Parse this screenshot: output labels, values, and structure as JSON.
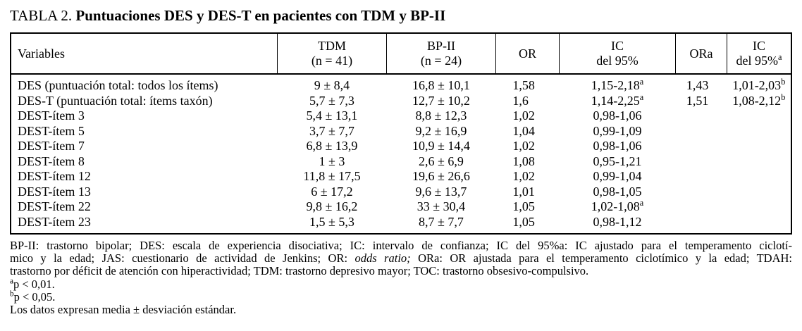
{
  "title": {
    "label": "TABLA 2.",
    "text": "Puntuaciones DES y DES-T en pacientes con TDM y BP-II"
  },
  "table": {
    "columns": [
      {
        "id": "variables",
        "header_lines": [
          "Variables"
        ]
      },
      {
        "id": "tdm",
        "header_lines": [
          "TDM",
          "(n = 41)"
        ]
      },
      {
        "id": "bpii",
        "header_lines": [
          "BP-II",
          "(n = 24)"
        ]
      },
      {
        "id": "or",
        "header_lines": [
          "OR"
        ]
      },
      {
        "id": "ic95",
        "header_lines": [
          "IC",
          "del 95%"
        ]
      },
      {
        "id": "ora",
        "header_lines": [
          "ORa"
        ]
      },
      {
        "id": "ic95a",
        "header_lines": [
          "IC",
          "del 95%"
        ],
        "header_sup": "a"
      }
    ],
    "rows": [
      {
        "variable": "DES (puntuación total: todos los ítems)",
        "tdm": "9 ± 8,4",
        "bpii": "16,8 ± 10,1",
        "or": "1,58",
        "ic95": {
          "text": "1,15-2,18",
          "sup": "a"
        },
        "ora": "1,43",
        "ic95a": {
          "text": "1,01-2,03",
          "sup": "b"
        }
      },
      {
        "variable": "DES-T (puntuación total: ítems taxón)",
        "tdm": "5,7 ± 7,3",
        "bpii": "12,7 ± 10,2",
        "or": "1,6",
        "ic95": {
          "text": "1,14-2,25",
          "sup": "a"
        },
        "ora": "1,51",
        "ic95a": {
          "text": "1,08-2,12",
          "sup": "b"
        }
      },
      {
        "variable": "DEST-ítem 3",
        "tdm": "5,4 ± 13,1",
        "bpii": "8,8 ± 12,3",
        "or": "1,02",
        "ic95": {
          "text": "0,98-1,06"
        },
        "ora": "",
        "ic95a": null
      },
      {
        "variable": "DEST-ítem 5",
        "tdm": "3,7 ± 7,7",
        "bpii": "9,2 ± 16,9",
        "or": "1,04",
        "ic95": {
          "text": "0,99-1,09"
        },
        "ora": "",
        "ic95a": null
      },
      {
        "variable": "DEST-ítem 7",
        "tdm": "6,8 ± 13,9",
        "bpii": "10,9 ± 14,4",
        "or": "1,02",
        "ic95": {
          "text": "0,98-1,06"
        },
        "ora": "",
        "ic95a": null
      },
      {
        "variable": "DEST-ítem 8",
        "tdm": "1 ± 3",
        "bpii": "2,6 ± 6,9",
        "or": "1,08",
        "ic95": {
          "text": "0,95-1,21"
        },
        "ora": "",
        "ic95a": null
      },
      {
        "variable": "DEST-ítem 12",
        "tdm": "11,8 ± 17,5",
        "bpii": "19,6 ± 26,6",
        "or": "1,02",
        "ic95": {
          "text": "0,99-1,04"
        },
        "ora": "",
        "ic95a": null
      },
      {
        "variable": "DEST-ítem 13",
        "tdm": "6 ± 17,2",
        "bpii": "9,6 ± 13,7",
        "or": "1,01",
        "ic95": {
          "text": "0,98-1,05"
        },
        "ora": "",
        "ic95a": null
      },
      {
        "variable": "DEST-ítem 22",
        "tdm": "9,8 ± 16,2",
        "bpii": "33 ± 30,4",
        "or": "1,05",
        "ic95": {
          "text": "1,02-1,08",
          "sup": "a"
        },
        "ora": "",
        "ic95a": null
      },
      {
        "variable": "DEST-ítem 23",
        "tdm": "1,5 ± 5,3",
        "bpii": "8,7 ± 7,7",
        "or": "1,05",
        "ic95": {
          "text": "0,98-1,12"
        },
        "ora": "",
        "ic95a": null
      }
    ]
  },
  "footnotes": {
    "abbr_line1": "BP-II: trastorno bipolar; DES: escala de experiencia disociativa; IC: intervalo de confianza; IC del 95%a: IC ajustado para el temperamento ciclotí-",
    "abbr_line2_pre": "mico y la edad; JAS: cuestionario de actividad de Jenkins; OR: ",
    "abbr_line2_italic": "odds ratio;",
    "abbr_line2_post": " ORa: OR ajustada para el temperamento ciclotímico y la edad; TDAH:",
    "abbr_line3": "trastorno por déficit de atención con hiperactividad; TDM: trastorno depresivo mayor; TOC: trastorno obsesivo-compulsivo.",
    "sig_a_sup": "a",
    "sig_a_text": "p < 0,01.",
    "sig_b_sup": "b",
    "sig_b_text": "p < 0,05.",
    "data_note": "Los datos expresan media ± desviación estándar."
  },
  "colors": {
    "text": "#000000",
    "background": "#ffffff",
    "border": "#000000"
  }
}
